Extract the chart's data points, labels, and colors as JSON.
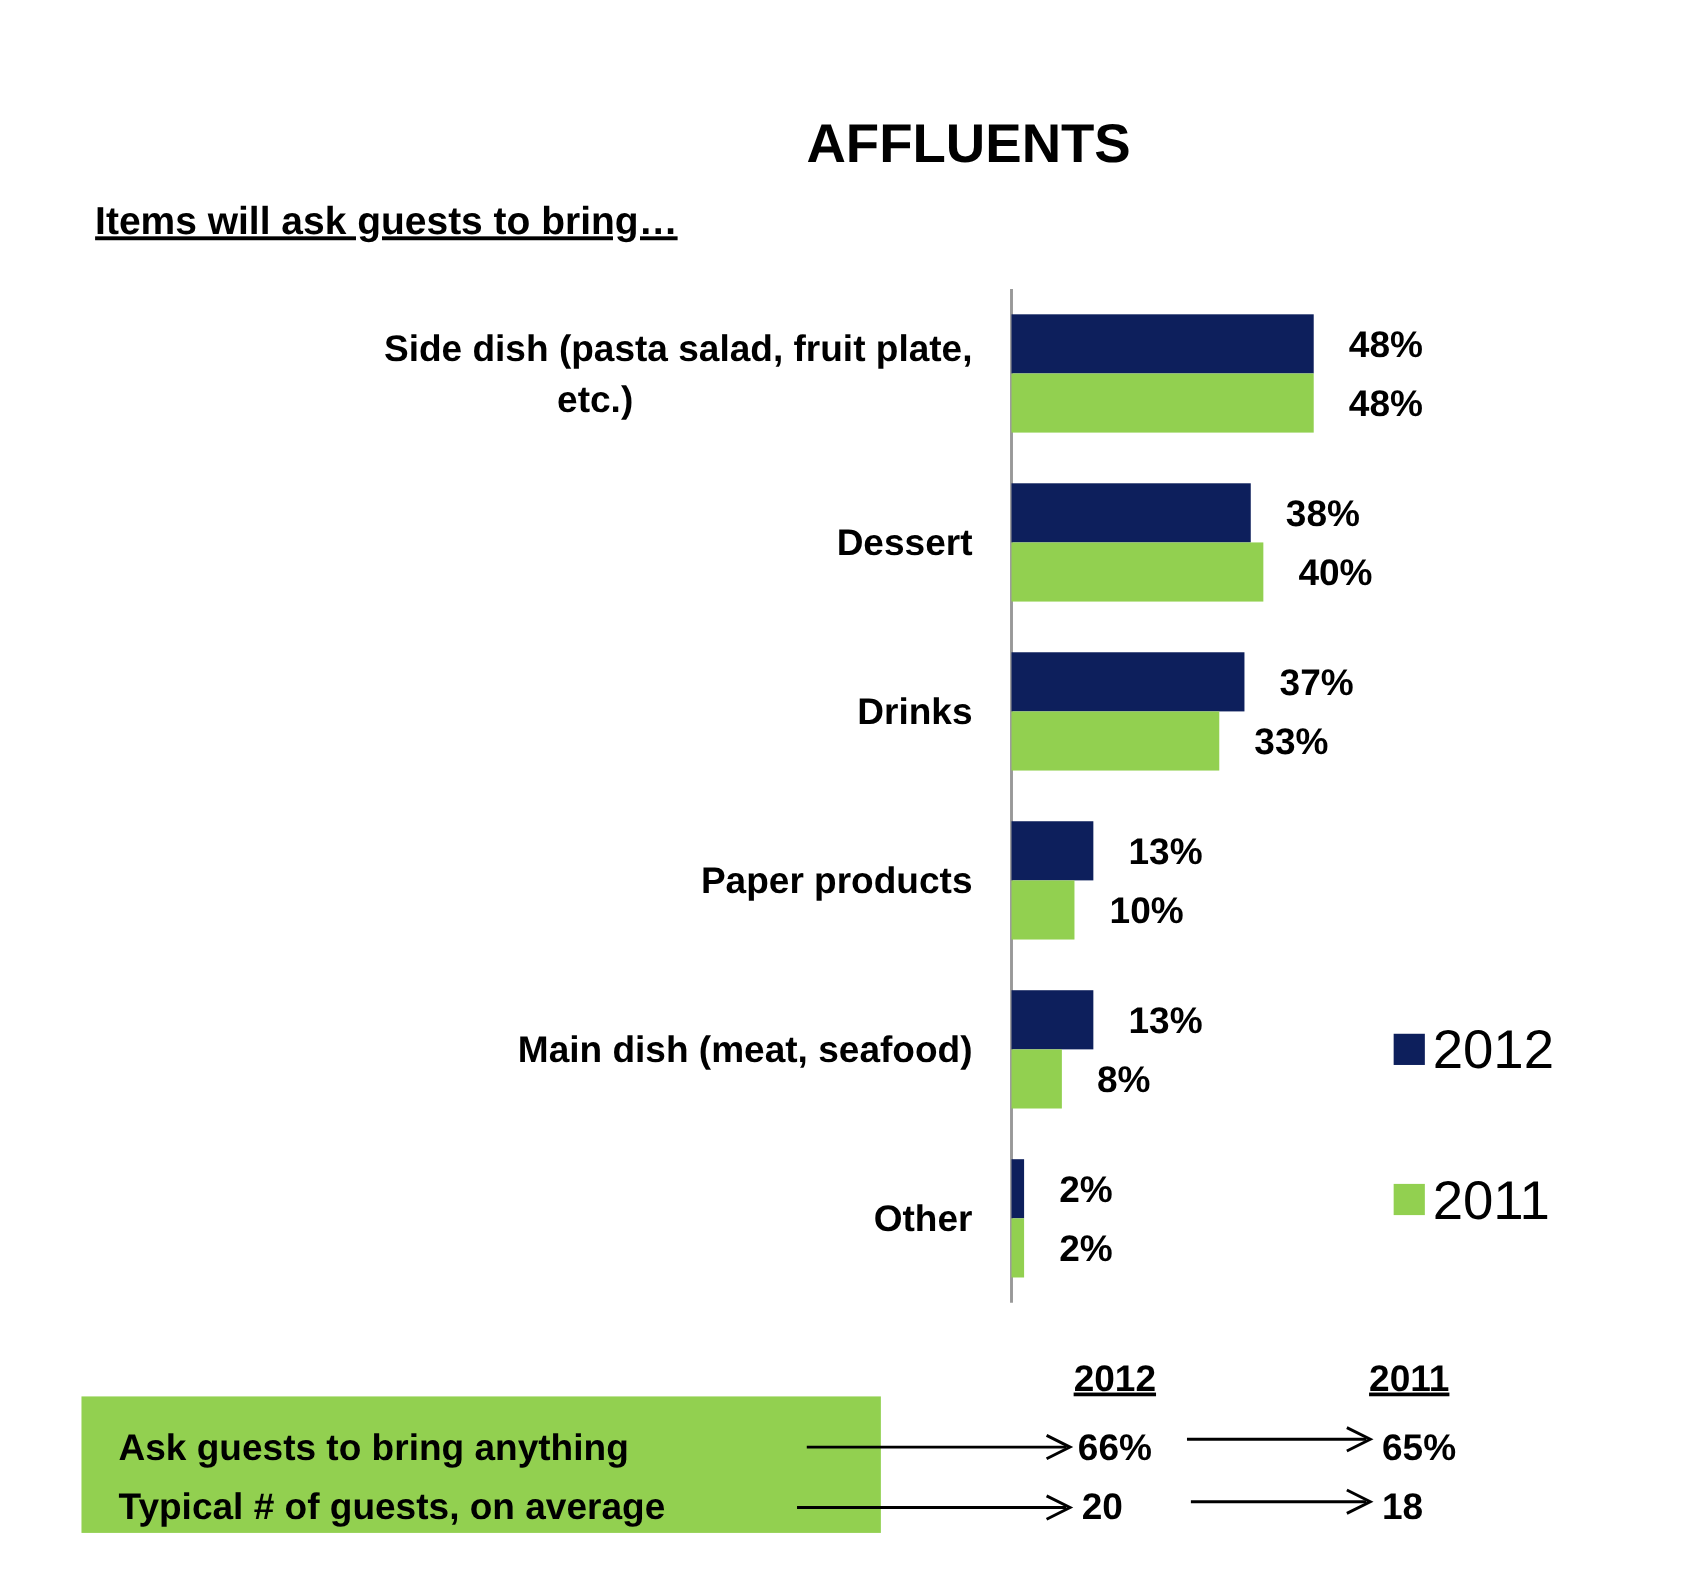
{
  "chart_data": {
    "type": "bar",
    "orientation": "horizontal",
    "title": "AFFLUENTS",
    "subtitle": "Items will ask guests to bring…",
    "categories": [
      "Side dish (pasta salad, fruit plate, etc.)",
      "Dessert",
      "Drinks",
      "Paper products",
      "Main dish (meat, seafood)",
      "Other"
    ],
    "series": [
      {
        "name": "2012",
        "color": "#0d1f5c",
        "values": [
          48,
          38,
          37,
          13,
          13,
          2
        ],
        "value_labels": [
          "48%",
          "38%",
          "37%",
          "13%",
          "13%",
          "2%"
        ]
      },
      {
        "name": "2011",
        "color": "#92d050",
        "values": [
          48,
          40,
          33,
          10,
          8,
          2
        ],
        "value_labels": [
          "48%",
          "40%",
          "33%",
          "10%",
          "8%",
          "2%"
        ]
      }
    ],
    "legend": "right",
    "annotations": [
      "2012",
      "2011",
      "Ask guests to bring anything",
      "66%",
      "65%",
      "Typical # of guests, on average",
      "20",
      "18"
    ]
  }
}
